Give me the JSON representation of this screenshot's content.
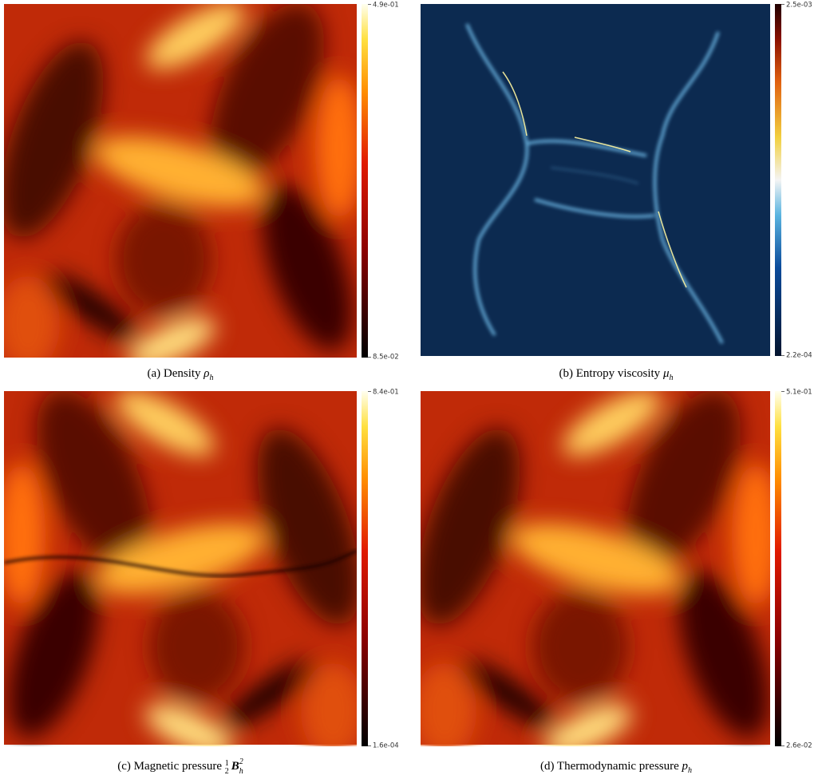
{
  "panels": [
    {
      "caption": "(a) Density",
      "symbol": "ρ",
      "subscript": "h",
      "colorbar": {
        "max": "4.9e-01",
        "min": "8.5e-02"
      }
    },
    {
      "caption": "(b) Entropy viscosity",
      "symbol": "μ",
      "subscript": "h",
      "colorbar": {
        "max": "2.5e-03",
        "min": "2.2e-04"
      }
    },
    {
      "caption": "(c) Magnetic pressure",
      "fraction": {
        "numerator": "1",
        "denominator": "2"
      },
      "symbol": "B",
      "subscript": "h",
      "superscript": "2",
      "colorbar": {
        "max": "8.4e-01",
        "min": "1.6e-04"
      }
    },
    {
      "caption": "(d) Thermodynamic pressure",
      "symbol": "p",
      "subscript": "h",
      "colorbar": {
        "max": "5.1e-01",
        "min": "2.6e-02"
      }
    }
  ]
}
